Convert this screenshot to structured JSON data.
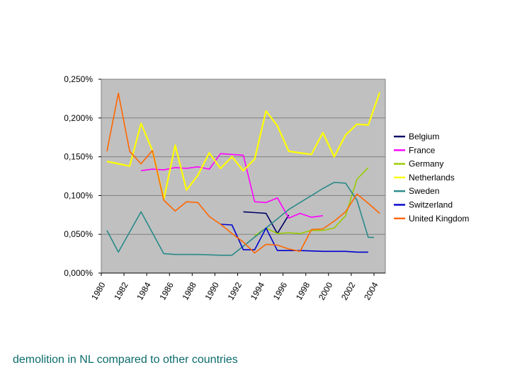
{
  "caption": "demolition in NL compared to other countries",
  "chart_data": {
    "type": "line",
    "ylim": [
      0,
      0.25
    ],
    "y_ticks": [
      0,
      0.05,
      0.1,
      0.15,
      0.2,
      0.25
    ],
    "y_tick_labels": [
      "0,000%",
      "0,050%",
      "0,100%",
      "0,150%",
      "0,200%",
      "0,250%"
    ],
    "xlim": [
      1980,
      2005
    ],
    "x_tick_labels": [
      "1980",
      "1982",
      "1984",
      "1986",
      "1988",
      "1990",
      "1992",
      "1994",
      "1996",
      "1998",
      "2000",
      "2002",
      "2004"
    ],
    "grid": true,
    "plot_background": "#c0c0c0",
    "legend_position": "right",
    "series": [
      {
        "name": "Belgium",
        "color": "#000066",
        "points": [
          [
            1992.5,
            0.079
          ],
          [
            1993.5,
            0.078
          ],
          [
            1994.5,
            0.077
          ],
          [
            1995.5,
            0.051
          ],
          [
            1996.5,
            0.075
          ]
        ]
      },
      {
        "name": "France",
        "color": "#ff00ff",
        "points": [
          [
            1983.5,
            0.132
          ],
          [
            1984.5,
            0.134
          ],
          [
            1985.5,
            0.133
          ],
          [
            1986.5,
            0.136
          ],
          [
            1987.5,
            0.135
          ],
          [
            1988.5,
            0.137
          ],
          [
            1989.5,
            0.134
          ],
          [
            1990.5,
            0.154
          ],
          [
            1991.5,
            0.153
          ],
          [
            1992.5,
            0.152
          ],
          [
            1993.5,
            0.092
          ],
          [
            1994.5,
            0.091
          ],
          [
            1995.5,
            0.097
          ],
          [
            1996.5,
            0.071
          ],
          [
            1997.5,
            0.077
          ],
          [
            1998.5,
            0.072
          ],
          [
            1999.5,
            0.074
          ]
        ]
      },
      {
        "name": "Germany",
        "color": "#99cc00",
        "points": [
          [
            1993.5,
            0.048
          ],
          [
            1994.5,
            0.058
          ],
          [
            1995.5,
            0.051
          ],
          [
            1996.5,
            0.052
          ],
          [
            1997.5,
            0.051
          ],
          [
            1998.5,
            0.055
          ],
          [
            1999.5,
            0.055
          ],
          [
            2000.5,
            0.058
          ],
          [
            2001.5,
            0.074
          ],
          [
            2002.5,
            0.121
          ],
          [
            2003.5,
            0.136
          ]
        ]
      },
      {
        "name": "Netherlands",
        "color": "#ffff00",
        "points": [
          [
            1980.5,
            0.144
          ],
          [
            1981.5,
            0.141
          ],
          [
            1982.5,
            0.138
          ],
          [
            1983.5,
            0.193
          ],
          [
            1984.5,
            0.158
          ],
          [
            1985.5,
            0.095
          ],
          [
            1986.5,
            0.165
          ],
          [
            1987.5,
            0.107
          ],
          [
            1988.5,
            0.126
          ],
          [
            1989.5,
            0.155
          ],
          [
            1990.5,
            0.135
          ],
          [
            1991.5,
            0.15
          ],
          [
            1992.5,
            0.132
          ],
          [
            1993.5,
            0.147
          ],
          [
            1994.5,
            0.209
          ],
          [
            1995.5,
            0.19
          ],
          [
            1996.5,
            0.157
          ],
          [
            1998.5,
            0.153
          ],
          [
            1999.5,
            0.181
          ],
          [
            2000.5,
            0.15
          ],
          [
            2001.5,
            0.178
          ],
          [
            2002.5,
            0.192
          ],
          [
            2003.5,
            0.191
          ],
          [
            2004.5,
            0.233
          ]
        ]
      },
      {
        "name": "Sweden",
        "color": "#2a8a8a",
        "points": [
          [
            1980.5,
            0.055
          ],
          [
            1981.5,
            0.027
          ],
          [
            1983.5,
            0.079
          ],
          [
            1985.5,
            0.025
          ],
          [
            1986.5,
            0.024
          ],
          [
            1988.5,
            0.024
          ],
          [
            1990.5,
            0.023
          ],
          [
            1991.5,
            0.023
          ],
          [
            1994.5,
            0.058
          ],
          [
            1996.5,
            0.082
          ],
          [
            1998.5,
            0.1
          ],
          [
            1999.5,
            0.109
          ],
          [
            2000.5,
            0.117
          ],
          [
            2001.5,
            0.116
          ],
          [
            2002.5,
            0.094
          ],
          [
            2003.5,
            0.046
          ],
          [
            2004.0,
            0.046
          ]
        ]
      },
      {
        "name": "Switzerland",
        "color": "#0000cc",
        "points": [
          [
            1990.5,
            0.063
          ],
          [
            1991.5,
            0.062
          ],
          [
            1992.5,
            0.03
          ],
          [
            1993.5,
            0.03
          ],
          [
            1994.5,
            0.058
          ],
          [
            1995.5,
            0.029
          ],
          [
            1997.5,
            0.029
          ],
          [
            1999.5,
            0.028
          ],
          [
            2001.5,
            0.028
          ],
          [
            2002.5,
            0.027
          ],
          [
            2003.5,
            0.027
          ]
        ]
      },
      {
        "name": "United Kingdom",
        "color": "#ff6600",
        "points": [
          [
            1980.5,
            0.157
          ],
          [
            1981.5,
            0.232
          ],
          [
            1982.5,
            0.157
          ],
          [
            1983.5,
            0.141
          ],
          [
            1984.5,
            0.158
          ],
          [
            1985.5,
            0.094
          ],
          [
            1986.5,
            0.08
          ],
          [
            1987.5,
            0.092
          ],
          [
            1988.5,
            0.091
          ],
          [
            1989.5,
            0.073
          ],
          [
            1990.5,
            0.063
          ],
          [
            1991.5,
            0.051
          ],
          [
            1992.5,
            0.04
          ],
          [
            1993.5,
            0.026
          ],
          [
            1994.5,
            0.037
          ],
          [
            1995.5,
            0.036
          ],
          [
            1996.5,
            0.031
          ],
          [
            1997.5,
            0.028
          ],
          [
            1998.5,
            0.056
          ],
          [
            1999.5,
            0.057
          ],
          [
            2000.5,
            0.067
          ],
          [
            2001.5,
            0.079
          ],
          [
            2002.5,
            0.102
          ],
          [
            2003.5,
            0.09
          ],
          [
            2004.5,
            0.077
          ]
        ]
      }
    ]
  }
}
